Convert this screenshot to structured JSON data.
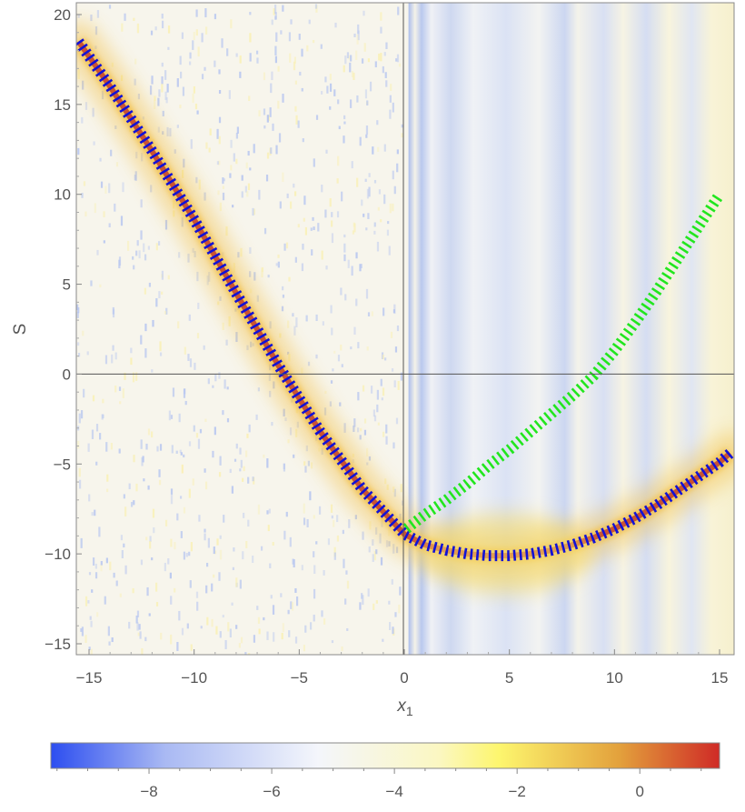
{
  "chart_data": {
    "type": "heatmap",
    "xlabel": "x",
    "xlabel_subscript": "1",
    "ylabel": "S",
    "xlim": [
      -15.5,
      15.5
    ],
    "ylim": [
      -15.7,
      20.5
    ],
    "xticks": [
      -15,
      -10,
      -5,
      0,
      5,
      10,
      15
    ],
    "xtick_labels": [
      "−15",
      "−10",
      "−5",
      "0",
      "5",
      "10",
      "15"
    ],
    "yticks": [
      -15,
      -10,
      -5,
      0,
      5,
      10,
      15,
      20
    ],
    "ytick_labels": [
      "−15",
      "−10",
      "−5",
      "0",
      "5",
      "10",
      "15",
      "20"
    ],
    "grid": false,
    "crosshair_axes": true,
    "colorbar": {
      "placement": "bottom",
      "range": [
        -9.6,
        1.3
      ],
      "ticks": [
        -8,
        -6,
        -4,
        -2,
        0
      ],
      "tick_labels": [
        "−8",
        "−6",
        "−4",
        "−2",
        "0"
      ],
      "colors": [
        "#2d4ef0",
        "#a9b9f3",
        "#f4f6fb",
        "#fbf7c2",
        "#fdf66e",
        "#e3a13c",
        "#cf2a26"
      ]
    },
    "series": [
      {
        "style": "dashed",
        "color": "#1212d6",
        "x": [
          -15.5,
          -14,
          -12,
          -10,
          -8,
          -6,
          -4,
          -2,
          0,
          1,
          2,
          3,
          4,
          5,
          6,
          7,
          8,
          9,
          10,
          11,
          12,
          13,
          14,
          15,
          15.5
        ],
        "y": [
          18.5,
          16.0,
          12.4,
          8.6,
          4.5,
          0.5,
          -3.2,
          -6.4,
          -8.9,
          -9.5,
          -9.8,
          -10.0,
          -10.1,
          -10.1,
          -10.0,
          -9.8,
          -9.5,
          -9.1,
          -8.6,
          -8.0,
          -7.3,
          -6.5,
          -5.7,
          -4.9,
          -4.4
        ]
      },
      {
        "style": "dashed",
        "color": "#22e61e",
        "x": [
          0.1,
          1,
          2,
          3,
          4,
          5,
          6,
          7,
          8,
          9,
          10,
          11,
          12,
          13,
          14,
          15
        ],
        "y": [
          -8.6,
          -7.8,
          -7.0,
          -6.1,
          -5.1,
          -4.2,
          -3.2,
          -2.2,
          -1.2,
          -0.1,
          1.3,
          2.9,
          4.6,
          6.4,
          8.2,
          10.0
        ]
      }
    ],
    "colors": {
      "axis": "#888888",
      "ridge_peak": "#b8231f",
      "ridge_warm": "#f2c14a"
    }
  }
}
